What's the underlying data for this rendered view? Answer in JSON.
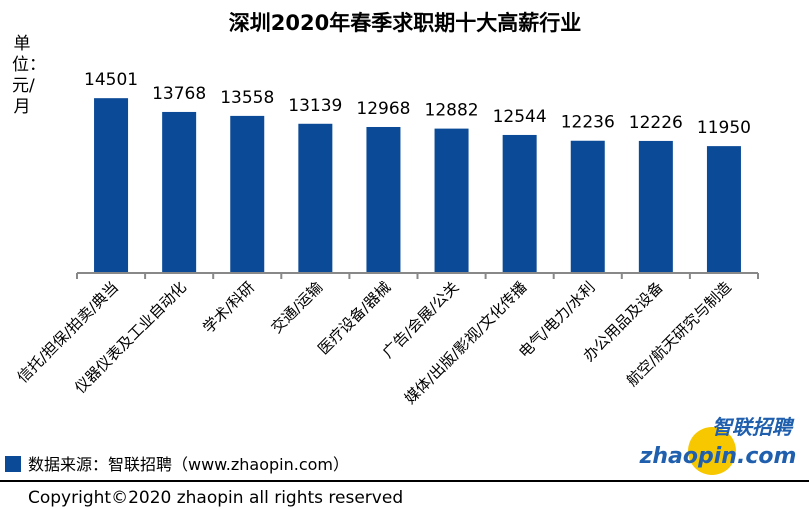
{
  "chart_data": {
    "type": "bar",
    "title": "深圳2020年春季求职期十大高薪行业",
    "ylabel": "单位：元/月",
    "xlabel": "",
    "categories": [
      "信托/担保/拍卖/典当",
      "仪器仪表及工业自动化",
      "学术/科研",
      "交通/运输",
      "医疗设备/器械",
      "广告/会展/公关",
      "媒体/出版/影视/文化传播",
      "电气/电力/水利",
      "办公用品及设备",
      "航空/航天研究与制造"
    ],
    "values": [
      14501,
      13768,
      13558,
      13139,
      12968,
      12882,
      12544,
      12236,
      12226,
      11950
    ],
    "ylim": [
      5200,
      16000
    ],
    "grid": false,
    "bar_color": "#0a4a96"
  },
  "source": "数据来源：智联招聘（www.zhaopin.com）",
  "copyright": "Copyright©2020 zhaopin all rights reserved",
  "logo": {
    "cn": "智联招聘",
    "en": "zhaopin.com"
  }
}
